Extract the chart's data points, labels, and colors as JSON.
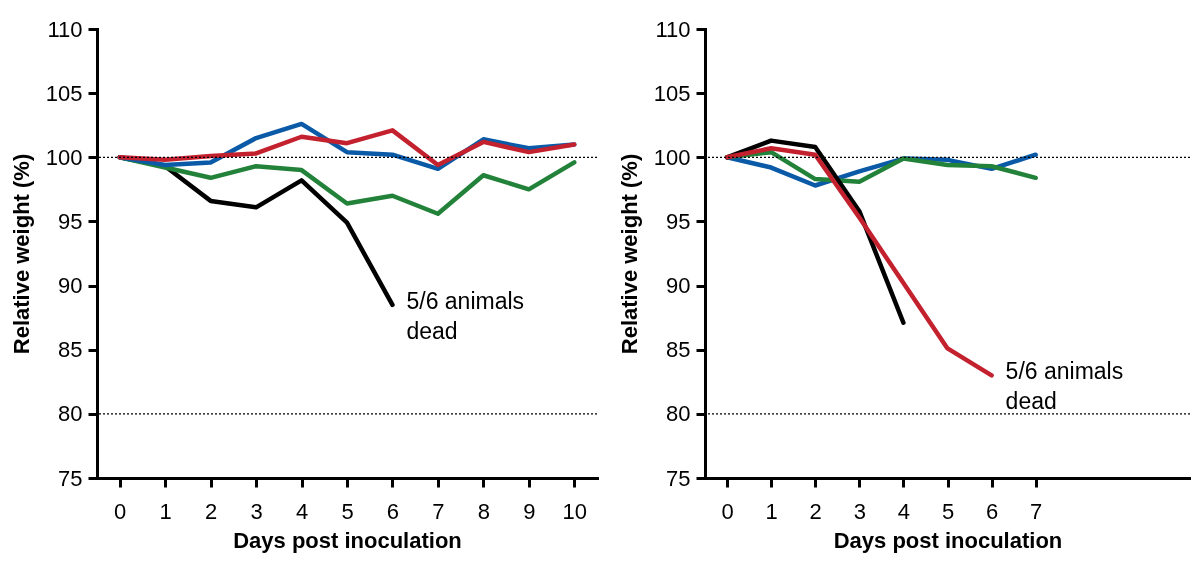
{
  "chart_data": [
    {
      "type": "line",
      "xlabel": "Days post inoculation",
      "ylabel": "Relative weight (%)",
      "x": [
        0,
        1,
        2,
        3,
        4,
        5,
        6,
        7,
        8,
        9,
        10
      ],
      "xlim": [
        -0.5,
        10.5
      ],
      "xticks": [
        0,
        1,
        2,
        3,
        4,
        5,
        6,
        7,
        8,
        9,
        10
      ],
      "ylim": [
        75,
        110
      ],
      "yticks": [
        75,
        80,
        85,
        90,
        95,
        100,
        105,
        110
      ],
      "grid": false,
      "marker": "none",
      "line_style": "solid",
      "series": [
        {
          "color": "#000000",
          "x": [
            0,
            1,
            2,
            3,
            4,
            5,
            6
          ],
          "values": [
            100,
            99.3,
            96.6,
            96.1,
            98.2,
            94.9,
            88.5
          ]
        },
        {
          "color": "#23823a",
          "values": [
            100,
            99.2,
            98.4,
            99.3,
            99.0,
            96.4,
            97.0,
            95.6,
            98.6,
            97.5,
            99.6
          ]
        },
        {
          "color": "#0a5aa8",
          "values": [
            100,
            99.4,
            99.6,
            101.5,
            102.6,
            100.4,
            100.2,
            99.1,
            101.4,
            100.7,
            101.0
          ]
        },
        {
          "color": "#c4212f",
          "values": [
            100,
            99.8,
            100.1,
            100.3,
            101.6,
            101.1,
            102.1,
            99.4,
            101.2,
            100.4,
            101.0
          ]
        }
      ],
      "ref_lines": [
        {
          "axis": "y",
          "value": 100,
          "color": "#000000",
          "line_style": "dotted"
        },
        {
          "axis": "y",
          "value": 80,
          "color": "#000000",
          "line_style": "dotted"
        }
      ],
      "annotations": [
        "5/6 animals\ndead"
      ]
    },
    {
      "type": "line",
      "xlabel": "Days post inoculation",
      "ylabel": "Relative weight (%)",
      "x": [
        0,
        1,
        2,
        3,
        4,
        5,
        6,
        7
      ],
      "xlim": [
        -0.5,
        10.5
      ],
      "xticks": [
        0,
        1,
        2,
        3,
        4,
        5,
        6,
        7
      ],
      "ylim": [
        75,
        110
      ],
      "yticks": [
        75,
        80,
        85,
        90,
        95,
        100,
        105,
        110
      ],
      "grid": false,
      "marker": "none",
      "line_style": "solid",
      "series": [
        {
          "color": "#0a5aa8",
          "values": [
            100,
            99.2,
            97.8,
            98.9,
            99.9,
            99.8,
            99.1,
            100.2
          ]
        },
        {
          "color": "#23823a",
          "values": [
            100,
            100.4,
            98.3,
            98.1,
            99.9,
            99.4,
            99.3,
            98.4
          ]
        },
        {
          "color": "#000000",
          "x": [
            0,
            1,
            2,
            3,
            4
          ],
          "values": [
            100,
            101.3,
            100.8,
            95.8,
            87.1
          ]
        },
        {
          "color": "#c4212f",
          "x": [
            0,
            1,
            2,
            3,
            4,
            5,
            6
          ],
          "values": [
            100,
            100.7,
            100.2,
            95.3,
            90.2,
            85.1,
            83.0
          ]
        }
      ],
      "ref_lines": [
        {
          "axis": "y",
          "value": 100,
          "color": "#000000",
          "line_style": "dotted"
        },
        {
          "axis": "y",
          "value": 80,
          "color": "#000000",
          "line_style": "dotted"
        }
      ],
      "annotations": [
        "5/6 animals\ndead"
      ]
    }
  ]
}
